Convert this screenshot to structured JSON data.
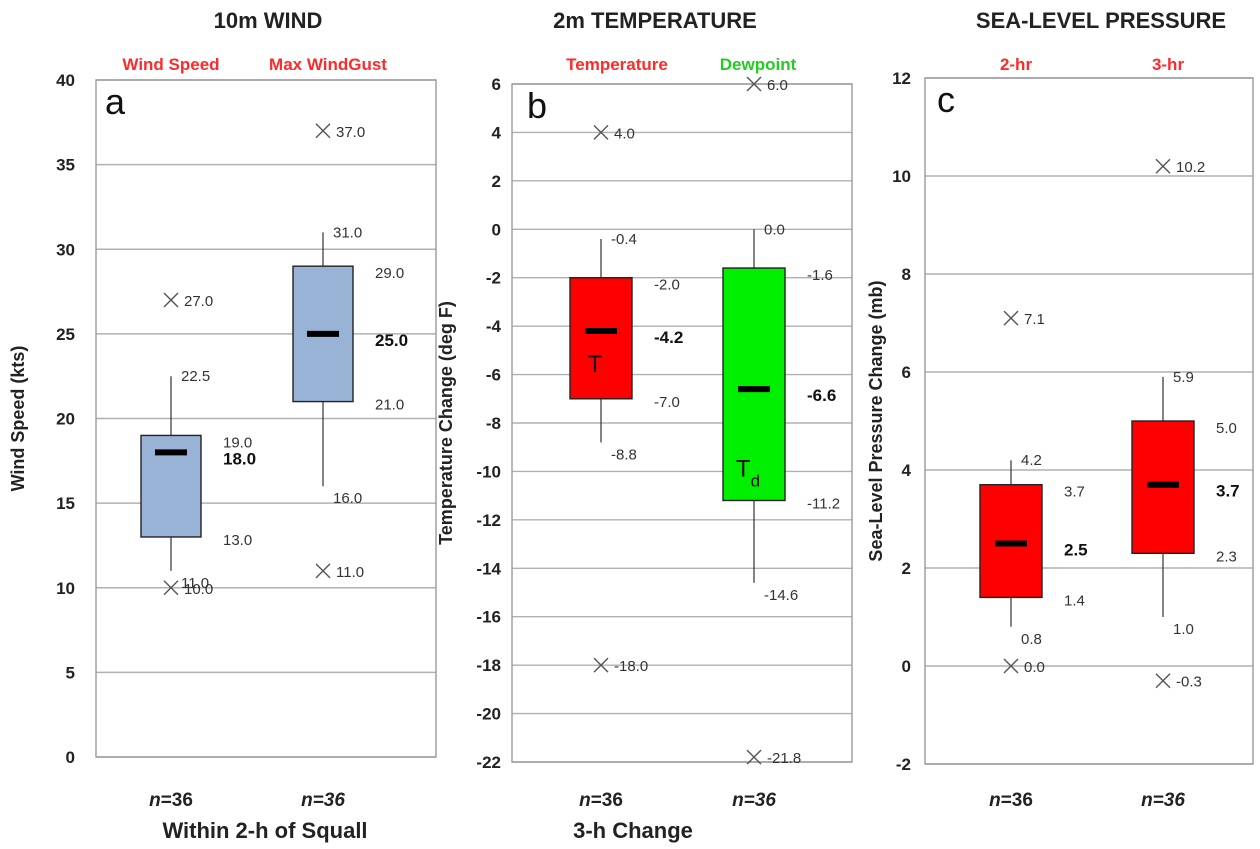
{
  "colors": {
    "wind_box": "#98b3d6",
    "temp_box": "#ff0000",
    "dew_box": "#00ee00",
    "pressure_box": "#ff0000",
    "header_red": "#ff2a2a",
    "header_green": "#22cc22",
    "grid": "#b0b0b0"
  },
  "chart_data": [
    {
      "type": "box",
      "panel_letter": "a",
      "title": "10m WIND",
      "ylabel": "Wind Speed (kts)",
      "footer": "Within 2-h of Squall",
      "ylim": [
        0,
        40
      ],
      "yticks": [
        "0",
        "5",
        "10",
        "15",
        "20",
        "25",
        "30",
        "35",
        "40"
      ],
      "tick_step": 5,
      "grid": true,
      "series": [
        {
          "name": "Wind Speed",
          "header_color": "red",
          "box_label": "",
          "n_label": "n",
          "n_value": "=36",
          "whisker_low": 11.0,
          "q1": 13.0,
          "median": 18.0,
          "q3": 19.0,
          "whisker_high": 22.5,
          "outlier_low": 10.0,
          "outlier_high": 27.0,
          "labels": {
            "whisker_low": "11.0",
            "q1": "13.0",
            "median": "18.0",
            "q3": "19.0",
            "whisker_high": "22.5",
            "outlier_low": "10.0",
            "outlier_high": "27.0"
          }
        },
        {
          "name": "Max WindGust",
          "header_color": "red",
          "box_label": "",
          "n_label": "n=36",
          "n_value": "",
          "whisker_low": 16.0,
          "q1": 21.0,
          "median": 25.0,
          "q3": 29.0,
          "whisker_high": 31.0,
          "outlier_low": 11.0,
          "outlier_high": 37.0,
          "labels": {
            "whisker_low": "16.0",
            "q1": "21.0",
            "median": "25.0",
            "q3": "29.0",
            "whisker_high": "31.0",
            "outlier_low": "11.0",
            "outlier_high": "37.0"
          }
        }
      ]
    },
    {
      "type": "box",
      "panel_letter": "b",
      "title": "2m TEMPERATURE",
      "ylabel": "Temperature Change (deg F)",
      "footer": "3-h Change",
      "ylim": [
        -22,
        6
      ],
      "yticks": [
        "-22",
        "-20",
        "-18",
        "-16",
        "-14",
        "-12",
        "-10",
        "-8",
        "-6",
        "-4",
        "-2",
        "0",
        "2",
        "4",
        "6"
      ],
      "tick_step": 2,
      "grid": true,
      "series": [
        {
          "name": "Temperature",
          "header_color": "red",
          "box_label": "T",
          "n_label": "n",
          "n_value": "=36",
          "whisker_low": -8.8,
          "q1": -7.0,
          "median": -4.2,
          "q3": -2.0,
          "whisker_high": -0.4,
          "outlier_low": -18.0,
          "outlier_high": 4.0,
          "labels": {
            "whisker_low": "-8.8",
            "q1": "-7.0",
            "median": "-4.2",
            "q3": "-2.0",
            "whisker_high": "-0.4",
            "outlier_low": "-18.0",
            "outlier_high": "4.0"
          }
        },
        {
          "name": "Dewpoint",
          "header_color": "green",
          "box_label": "T",
          "box_label_sub": "d",
          "n_label": "n=36",
          "n_value": "",
          "whisker_low": -14.6,
          "q1": -11.2,
          "median": -6.6,
          "q3": -1.6,
          "whisker_high": 0.0,
          "outlier_low": -21.8,
          "outlier_high": 6.0,
          "labels": {
            "whisker_low": "-14.6",
            "q1": "-11.2",
            "median": "-6.6",
            "q3": "-1.6",
            "whisker_high": "0.0",
            "outlier_low": "-21.8",
            "outlier_high": "6.0"
          }
        }
      ]
    },
    {
      "type": "box",
      "panel_letter": "c",
      "title": "SEA-LEVEL PRESSURE",
      "ylabel": "Sea-Level  Pressure Change (mb)",
      "footer": "",
      "ylim": [
        -2,
        12
      ],
      "yticks": [
        "-2",
        "0",
        "2",
        "4",
        "6",
        "8",
        "10",
        "12"
      ],
      "tick_step": 2,
      "grid": true,
      "series": [
        {
          "name": "2-hr",
          "header_color": "red",
          "box_label": "",
          "n_label": "n",
          "n_value": "=36",
          "whisker_low": 0.8,
          "q1": 1.4,
          "median": 2.5,
          "q3": 3.7,
          "whisker_high": 4.2,
          "outlier_low": 0.0,
          "outlier_high": 7.1,
          "labels": {
            "whisker_low": "0.8",
            "q1": "1.4",
            "median": "2.5",
            "q3": "3.7",
            "whisker_high": "4.2",
            "outlier_low": "0.0",
            "outlier_high": "7.1"
          }
        },
        {
          "name": "3-hr",
          "header_color": "red",
          "box_label": "",
          "n_label": "n=36",
          "n_value": "",
          "whisker_low": 1.0,
          "q1": 2.3,
          "median": 3.7,
          "q3": 5.0,
          "whisker_high": 5.9,
          "outlier_low": -0.3,
          "outlier_high": 10.2,
          "labels": {
            "whisker_low": "1.0",
            "q1": "2.3",
            "median": "3.7",
            "q3": "5.0",
            "whisker_high": "5.9",
            "outlier_low": "-0.3",
            "outlier_high": "10.2"
          }
        }
      ]
    }
  ]
}
